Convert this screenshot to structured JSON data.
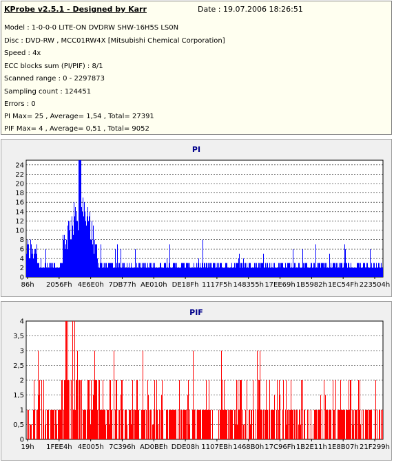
{
  "header": {
    "title": "KProbe v2.5.1 - Designed by Karr",
    "date": "Date : 19.07.2006 18:26:51"
  },
  "info_lines": [
    "Model : 1-0-0-0 LITE-ON DVDRW SHW-16H5S  LS0N",
    "Disc : DVD-RW , MCC01RW4X [Mitsubishi Chemical Corporation]",
    "Speed : 4x",
    "ECC blocks sum (PI/PIF) : 8/1",
    "Scanned range : 0 - 2297873",
    "Sampling count : 124451",
    "Errors : 0",
    "PI Max= 25 , Average= 1,54 , Total= 27391",
    "PIF Max= 4 , Average= 0,51 , Total= 9052"
  ],
  "chart_data": [
    {
      "type": "bar",
      "title": "PI",
      "color": "#0000ff",
      "ylim": [
        0,
        25
      ],
      "yticks": [
        "0",
        "2",
        "4",
        "6",
        "8",
        "10",
        "12",
        "14",
        "16",
        "18",
        "20",
        "22",
        "24"
      ],
      "xticks": [
        "86h",
        "2056Fh",
        "4E6E0h",
        "7DB77h",
        "AE010h",
        "DE18Fh",
        "1117F5h",
        "148355h",
        "17EE69h",
        "1B5982h",
        "1EC54Fh",
        "223504h"
      ],
      "grid": true,
      "max": 25,
      "peak_region_fraction": [
        0.1,
        0.2
      ]
    },
    {
      "type": "bar",
      "title": "PIF",
      "color": "#ff0000",
      "ylim": [
        0,
        4
      ],
      "yticks": [
        "0",
        "0,5",
        "1",
        "1,5",
        "2",
        "2,5",
        "3",
        "3,5",
        "4"
      ],
      "xticks": [
        "19h",
        "1FEE4h",
        "4E005h",
        "7C396h",
        "AD0BEh",
        "DDE08h",
        "1107EBh",
        "1468B0h",
        "17C96Fh",
        "1B2E11h",
        "1E8B07h",
        "21F299h"
      ],
      "grid": true,
      "max": 4,
      "peak_region_fraction": [
        0.1,
        0.2
      ]
    }
  ]
}
